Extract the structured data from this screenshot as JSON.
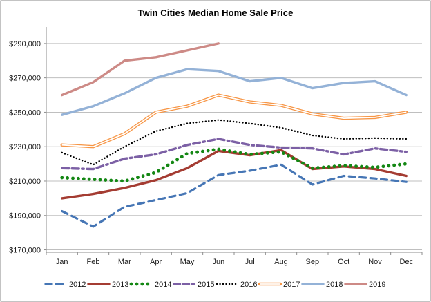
{
  "title": "Twin Cities Median Home Sale Price",
  "chart_data": {
    "type": "line",
    "title": "Twin Cities Median Home Sale Price",
    "xlabel": "",
    "ylabel": "",
    "categories": [
      "Jan",
      "Feb",
      "Mar",
      "Apr",
      "May",
      "Jun",
      "Jul",
      "Aug",
      "Sep",
      "Oct",
      "Nov",
      "Dec"
    ],
    "y_axis": {
      "min": 170000,
      "max": 290000,
      "step": 20000,
      "tick_labels": [
        "$170,000",
        "$190,000",
        "$210,000",
        "$230,000",
        "$250,000",
        "$270,000",
        "$290,000"
      ]
    },
    "grid": true,
    "legend_position": "bottom",
    "series": [
      {
        "name": "2012",
        "color": "#4676B5",
        "style": "dashed",
        "values": [
          192500,
          183500,
          195000,
          199000,
          203000,
          213500,
          216000,
          219500,
          208000,
          213000,
          211500,
          209500
        ]
      },
      {
        "name": "2013",
        "color": "#A43C32",
        "style": "solid",
        "values": [
          200000,
          202500,
          206000,
          210500,
          217500,
          227500,
          225000,
          228000,
          217000,
          218500,
          217000,
          213000
        ]
      },
      {
        "name": "2014",
        "color": "#148714",
        "style": "dotted-round",
        "values": [
          212000,
          211000,
          210000,
          215000,
          226000,
          228500,
          225500,
          227000,
          217500,
          219000,
          218000,
          220000
        ]
      },
      {
        "name": "2015",
        "color": "#7C60A5",
        "style": "dash-dash-dot",
        "values": [
          217500,
          217000,
          223000,
          225500,
          231000,
          234500,
          231000,
          229500,
          229000,
          225500,
          229000,
          227000
        ]
      },
      {
        "name": "2016",
        "color": "#000000",
        "style": "dotted-fine",
        "values": [
          226500,
          219500,
          230000,
          239000,
          243500,
          245500,
          243500,
          241000,
          236500,
          234500,
          235000,
          234500
        ]
      },
      {
        "name": "2017",
        "color": "#F79646",
        "style": "solid-outlined",
        "values": [
          231000,
          230000,
          237500,
          250000,
          253500,
          260000,
          256000,
          254000,
          249000,
          246500,
          247000,
          250000
        ]
      },
      {
        "name": "2018",
        "color": "#94B2D7",
        "style": "solid",
        "values": [
          248500,
          253500,
          261000,
          270000,
          275000,
          274000,
          268000,
          270000,
          264000,
          267000,
          268000,
          260000
        ]
      },
      {
        "name": "2019",
        "color": "#CD8A86",
        "style": "solid",
        "values": [
          260000,
          267500,
          280000,
          282000,
          286000,
          290000
        ]
      }
    ]
  }
}
